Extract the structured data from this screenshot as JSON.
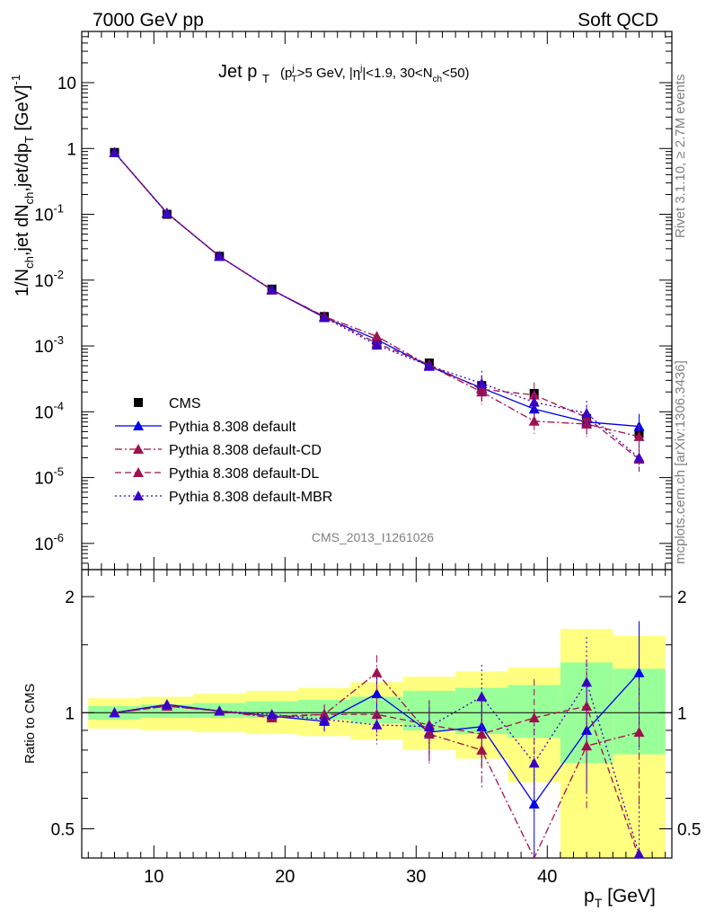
{
  "header": {
    "left": "7000 GeV pp",
    "right": "Soft QCD"
  },
  "side": {
    "top": "Rivet 3.1.10, ≥ 2.7M events",
    "bottom": "mcplots.cern.ch [arXiv:1306.3436]"
  },
  "chart_data": [
    {
      "type": "scatter",
      "title_main": "Jet p",
      "title_main_sub": "T",
      "title_cut": "(p_T^j>5 GeV, |η^j|<1.9, 30<N_ch<50)",
      "watermark": "CMS_2013_I1261026",
      "xlabel": "p_T [GeV]",
      "ylabel": "1/N_ch,jet dN_ch,jet/dp_T [GeV]^-1",
      "yscale": "log",
      "xlim": [
        4.5,
        49.5
      ],
      "ylim": [
        4e-07,
        60
      ],
      "x_ticks": [
        10,
        20,
        30,
        40
      ],
      "y_tick_labels": [
        "10^-6",
        "10^-5",
        "10^-4",
        "10^-3",
        "10^-2",
        "10^-1",
        "1",
        "10"
      ],
      "legend_position": "lower-left",
      "series": [
        {
          "name": "CMS",
          "marker": "square",
          "color": "#000000",
          "x": [
            7,
            11,
            15,
            19,
            23,
            27,
            31,
            35,
            39,
            43,
            47
          ],
          "y": [
            0.87,
            0.1,
            0.023,
            0.0073,
            0.0028,
            0.0011,
            0.00055,
            0.00025,
            0.00019,
            7.9e-05,
            4.7e-05
          ]
        },
        {
          "name": "Pythia 8.308 default",
          "marker": "triangle",
          "line": "solid",
          "color": "#0000ee",
          "x": [
            7,
            11,
            15,
            19,
            23,
            27,
            31,
            35,
            39,
            43,
            47
          ],
          "y": [
            0.87,
            0.105,
            0.023,
            0.0071,
            0.0027,
            0.00125,
            0.00049,
            0.00023,
            0.00011,
            7e-05,
            6e-05
          ]
        },
        {
          "name": "Pythia 8.308 default-CD",
          "marker": "triangle",
          "line": "dashdot",
          "color": "#a0104e",
          "x": [
            7,
            11,
            15,
            19,
            23,
            27,
            31,
            35,
            39,
            43,
            47
          ],
          "y": [
            0.87,
            0.104,
            0.023,
            0.0071,
            0.0028,
            0.0014,
            0.0005,
            0.0002,
            7.2e-05,
            6.5e-05,
            4.2e-05
          ]
        },
        {
          "name": "Pythia 8.308 default-DL",
          "marker": "triangle",
          "line": "dashed",
          "color": "#a0104e",
          "x": [
            7,
            11,
            15,
            19,
            23,
            27,
            31,
            35,
            39,
            43,
            47
          ],
          "y": [
            0.87,
            0.104,
            0.023,
            0.0071,
            0.0028,
            0.0011,
            0.00052,
            0.00022,
            0.00018,
            8.2e-05,
            1.9e-05
          ]
        },
        {
          "name": "Pythia 8.308 default-MBR",
          "marker": "triangle",
          "line": "dotted",
          "color": "#3b00c4",
          "x": [
            7,
            11,
            15,
            19,
            23,
            27,
            31,
            35,
            39,
            43,
            47
          ],
          "y": [
            0.87,
            0.104,
            0.023,
            0.0072,
            0.0027,
            0.00103,
            0.0005,
            0.00027,
            0.00014,
            9.5e-05,
            2e-05
          ]
        }
      ]
    },
    {
      "type": "scatter",
      "ylabel": "Ratio to CMS",
      "xlabel": "p_T [GeV]",
      "xlim": [
        4.5,
        49.5
      ],
      "ylim": [
        0.42,
        2.35
      ],
      "y_tick_labels": [
        "0.5",
        "1",
        "2"
      ],
      "bands": {
        "x_edges": [
          5,
          9,
          13,
          17,
          21,
          25,
          29,
          33,
          37,
          41,
          45,
          49
        ],
        "inner_color": "#99ff99",
        "outer_color": "#ffff80",
        "inner_lo": [
          0.96,
          0.97,
          0.97,
          0.97,
          0.96,
          0.94,
          0.9,
          0.88,
          0.86,
          0.74,
          0.78
        ],
        "inner_hi": [
          1.04,
          1.05,
          1.06,
          1.07,
          1.08,
          1.1,
          1.14,
          1.16,
          1.18,
          1.35,
          1.3
        ],
        "outer_lo": [
          0.91,
          0.9,
          0.89,
          0.88,
          0.87,
          0.85,
          0.8,
          0.76,
          0.66,
          0.4,
          0.42
        ],
        "outer_hi": [
          1.09,
          1.1,
          1.12,
          1.14,
          1.16,
          1.2,
          1.24,
          1.28,
          1.31,
          1.65,
          1.58
        ]
      },
      "series": [
        {
          "name": "Pythia 8.308 default",
          "color": "#0000ee",
          "line": "solid",
          "x": [
            7,
            11,
            15,
            19,
            23,
            27,
            31,
            35,
            39,
            43,
            47
          ],
          "y": [
            1.0,
            1.05,
            1.01,
            0.98,
            0.95,
            1.12,
            0.89,
            0.92,
            0.58,
            0.9,
            1.27
          ]
        },
        {
          "name": "Pythia 8.308 default-CD",
          "color": "#a0104e",
          "line": "dashdot",
          "x": [
            7,
            11,
            15,
            19,
            23,
            27,
            31,
            35,
            39,
            43,
            47
          ],
          "y": [
            1.0,
            1.04,
            1.01,
            0.97,
            0.99,
            1.27,
            0.88,
            0.8,
            0.38,
            0.82,
            0.89
          ]
        },
        {
          "name": "Pythia 8.308 default-DL",
          "color": "#a0104e",
          "line": "dashed",
          "x": [
            7,
            11,
            15,
            19,
            23,
            27,
            31,
            35,
            39,
            43,
            47
          ],
          "y": [
            1.0,
            1.04,
            1.01,
            0.98,
            0.99,
            0.99,
            0.93,
            0.88,
            0.97,
            1.04,
            0.4
          ]
        },
        {
          "name": "Pythia 8.308 default-MBR",
          "color": "#3b00c4",
          "line": "dotted",
          "x": [
            7,
            11,
            15,
            19,
            23,
            27,
            31,
            35,
            39,
            43,
            47
          ],
          "y": [
            1.0,
            1.05,
            1.01,
            0.99,
            0.96,
            0.93,
            0.92,
            1.1,
            0.74,
            1.2,
            0.43
          ]
        }
      ]
    }
  ]
}
